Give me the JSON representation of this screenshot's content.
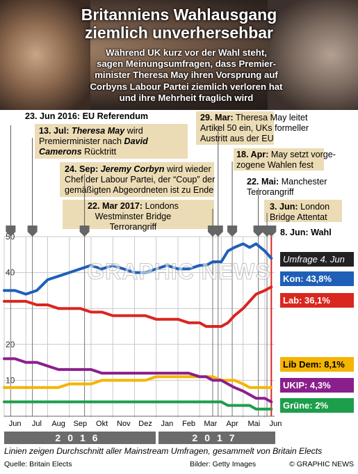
{
  "header": {
    "title_lines": [
      "Britanniens Wahlausgang",
      "ziemlich unverhersehbar"
    ],
    "subtitle_lines": [
      "Während UK kurz vor der Wahl steht,",
      "sagen Meinungsumfragen, dass Premier-",
      "minister Theresa May ihren Vorsprung auf",
      "Corbyns Labour Partei ziemlich verloren hat",
      "und ihre Mehrheit fraglich wird"
    ]
  },
  "events": [
    {
      "date": "23. Jun 2016:",
      "parts": [
        {
          "t": " EU Referendum",
          "b": true
        }
      ]
    },
    {
      "date": "13. Jul:",
      "parts": [
        {
          "t": " ",
          "b": false
        },
        {
          "t": "Theresa May",
          "b": true,
          "i": true
        },
        {
          "t": " wird",
          "b": false
        }
      ],
      "extra": [
        [
          {
            "t": "Premierminister nach ",
            "b": false
          },
          {
            "t": "David",
            "b": true,
            "i": true
          }
        ],
        [
          {
            "t": "Camerons",
            "b": true,
            "i": true
          },
          {
            "t": " Rücktritt",
            "b": false
          }
        ]
      ]
    },
    {
      "date": "24. Sep:",
      "parts": [
        {
          "t": " ",
          "b": false
        },
        {
          "t": "Jeremy Corbyn",
          "b": true,
          "i": true
        },
        {
          "t": " wird wieder",
          "b": false
        }
      ],
      "extra": [
        [
          {
            "t": "Chef der Labour Partei, der “Coup” der",
            "b": false
          }
        ],
        [
          {
            "t": "gemäßigten Abgeordneten ist zu Ende",
            "b": false
          }
        ]
      ]
    },
    {
      "date": "22. Mar 2017:",
      "parts": [
        {
          "t": " Londons",
          "b": false
        }
      ],
      "extra": [
        [
          {
            "t": "Westminster Bridge",
            "b": false
          }
        ],
        [
          {
            "t": "Terrorangriff",
            "b": false
          }
        ]
      ]
    },
    {
      "date": "29. Mar:",
      "parts": [
        {
          "t": " Theresa May leitet",
          "b": false
        }
      ],
      "extra": [
        [
          {
            "t": "Artikel 50 ein, UKs formeller",
            "b": false
          }
        ],
        [
          {
            "t": "Austritt aus der EU",
            "b": false
          }
        ]
      ]
    },
    {
      "date": "18. Apr:",
      "parts": [
        {
          "t": " May setzt vorge-",
          "b": false
        }
      ],
      "extra": [
        [
          {
            "t": "zogene Wahlen fest",
            "b": false
          }
        ]
      ]
    },
    {
      "date": "22. Mai:",
      "parts": [
        {
          "t": " Manchester",
          "b": false
        }
      ],
      "extra": [
        [
          {
            "t": "Terrorangriff",
            "b": false
          }
        ]
      ]
    },
    {
      "date": "3. Jun:",
      "parts": [
        {
          "t": " London",
          "b": false
        }
      ],
      "extra": [
        [
          {
            "t": "Bridge Attentat",
            "b": false
          }
        ]
      ]
    },
    {
      "date": "8. Jun: Wahl",
      "parts": []
    }
  ],
  "labels": {
    "umfrage": "Umfrage 4. Jun",
    "kon": "Kon: 43,8%",
    "lab": "Lab: 36,1%",
    "libdem": "Lib Dem: 8,1%",
    "ukip": "UKIP: 4,3%",
    "gruene": "Grüne: 2%"
  },
  "years": [
    "2016",
    "2017"
  ],
  "footnote": "Linien zeigen Durchschnitt aller Mainstream Umfragen, gesammelt von Britain Elects",
  "source": "Quelle: Britain Elects",
  "images": "Bilder: Getty Images",
  "copyright": "© GRAPHIC NEWS",
  "watermark": "GRAPHIC NEWS",
  "colors": {
    "kon": "#1f5fb8",
    "lab": "#d9261f",
    "libdem": "#f5b400",
    "ukip": "#8a1f8c",
    "gruene": "#1d9e4a",
    "umfrage": "#222222",
    "band": "#ecdcb6"
  },
  "chart_data": {
    "type": "line",
    "title": "",
    "xlabel": "",
    "ylabel": "",
    "ylim": [
      0,
      50
    ],
    "yticks": [
      10,
      20,
      40,
      50
    ],
    "months": [
      "Jun",
      "Jul",
      "Aug",
      "Sep",
      "Okt",
      "Nov",
      "Dez",
      "Jan",
      "Feb",
      "Mar",
      "Apr",
      "Mai",
      "Jun"
    ],
    "x": [
      0,
      0.5,
      1,
      1.5,
      2,
      2.5,
      3,
      3.5,
      4,
      4.5,
      5,
      5.5,
      6,
      6.5,
      7,
      7.5,
      8,
      8.5,
      9,
      9.3,
      9.6,
      10,
      10.3,
      10.6,
      11,
      11.3,
      11.6,
      12,
      12.3
    ],
    "series": [
      {
        "name": "Kon",
        "values": [
          35,
          35,
          34,
          35,
          38,
          39,
          40,
          41,
          42,
          41,
          42,
          41,
          40,
          40,
          41,
          42,
          41,
          41,
          42,
          42,
          43,
          43,
          46,
          47,
          48,
          47,
          48,
          46,
          44
        ]
      },
      {
        "name": "Lab",
        "values": [
          32,
          32,
          32,
          31,
          31,
          30,
          30,
          30,
          29,
          29,
          28,
          28,
          28,
          28,
          27,
          27,
          27,
          26,
          26,
          25,
          25,
          25,
          26,
          28,
          30,
          32,
          34,
          35,
          36
        ]
      },
      {
        "name": "Lib Dem",
        "values": [
          8,
          8,
          8,
          8,
          8,
          8,
          9,
          9,
          9,
          10,
          10,
          10,
          10,
          10,
          11,
          11,
          11,
          11,
          11,
          11,
          11,
          10,
          10,
          10,
          9,
          8,
          8,
          8,
          8
        ]
      },
      {
        "name": "UKIP",
        "values": [
          16,
          16,
          15,
          15,
          14,
          13,
          13,
          13,
          13,
          12,
          12,
          12,
          12,
          12,
          12,
          12,
          12,
          12,
          11,
          11,
          10,
          10,
          9,
          8,
          7,
          6,
          5,
          5,
          4
        ]
      },
      {
        "name": "Grüne",
        "values": [
          4,
          4,
          4,
          4,
          4,
          4,
          4,
          4,
          4,
          4,
          4,
          4,
          4,
          4,
          4,
          4,
          4,
          4,
          4,
          4,
          4,
          4,
          3,
          3,
          3,
          3,
          2,
          2,
          2
        ]
      }
    ],
    "event_x": [
      0.3,
      1.3,
      3.7,
      9.6,
      9.85,
      10.5,
      11.7,
      12.1,
      12.3
    ]
  }
}
